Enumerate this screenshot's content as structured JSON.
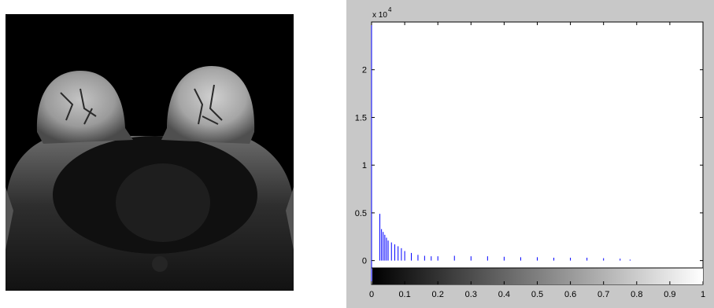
{
  "image_panel": {
    "kind": "grayscale MRI slice",
    "colors": {
      "background": "#000000",
      "tissue_bright": "#bdbdbd",
      "tissue_dark": "#1a1a1a"
    }
  },
  "chart_data": {
    "type": "bar",
    "title": "",
    "xlabel": "",
    "ylabel": "",
    "y_exponent_label": "x 10",
    "y_exponent_power": "4",
    "xlim": [
      0,
      1
    ],
    "ylim": [
      -0.25,
      2.5
    ],
    "xticks": [
      "0",
      "0.1",
      "0.2",
      "0.3",
      "0.4",
      "0.5",
      "0.6",
      "0.7",
      "0.8",
      "0.9",
      "1"
    ],
    "yticks": [
      "0",
      "0.5",
      "1",
      "1.5",
      "2"
    ],
    "ytick_values": [
      0,
      0.5,
      1,
      1.5,
      2
    ],
    "grid": false,
    "bar_color": "#0000ff",
    "frame_color": "#000000",
    "colorbar": {
      "from": "#000000",
      "to": "#ffffff",
      "range": [
        0,
        1
      ]
    },
    "series": [
      {
        "x": [
          0.025,
          0.03,
          0.035,
          0.04,
          0.045,
          0.05,
          0.06,
          0.07,
          0.08,
          0.09,
          0.1,
          0.12,
          0.14,
          0.16,
          0.18,
          0.2,
          0.25,
          0.3,
          0.35,
          0.4,
          0.45,
          0.5,
          0.55,
          0.6,
          0.65,
          0.7,
          0.75,
          0.78
        ],
        "values": [
          0.49,
          0.33,
          0.3,
          0.27,
          0.24,
          0.21,
          0.19,
          0.17,
          0.15,
          0.13,
          0.1,
          0.08,
          0.06,
          0.05,
          0.045,
          0.045,
          0.05,
          0.045,
          0.045,
          0.04,
          0.035,
          0.035,
          0.03,
          0.03,
          0.03,
          0.025,
          0.02,
          0.01
        ]
      }
    ]
  }
}
